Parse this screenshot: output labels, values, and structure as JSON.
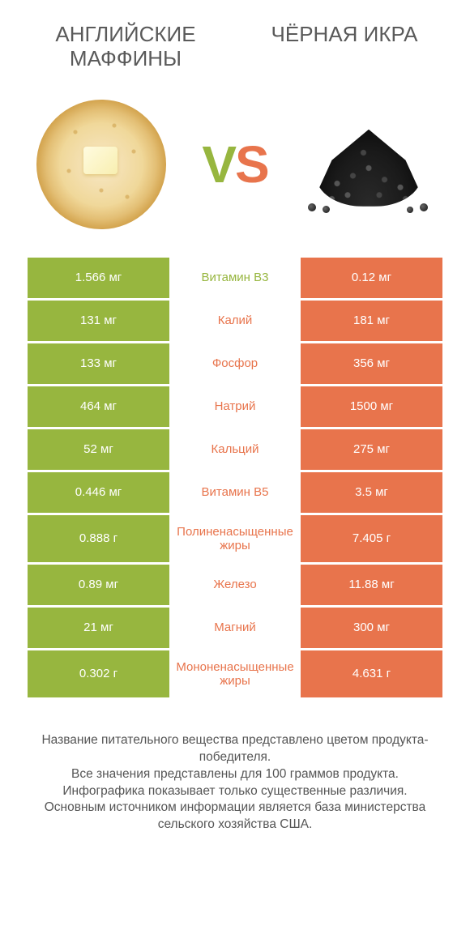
{
  "colors": {
    "left": "#97b63f",
    "right": "#e8744c",
    "text": "#555555"
  },
  "header": {
    "left_title": "АНГЛИЙСКИЕ МАФФИНЫ",
    "right_title": "ЧЁРНАЯ ИКРА",
    "vs_v": "V",
    "vs_s": "S"
  },
  "rows": [
    {
      "label": "Витамин B3",
      "left": "1.566 мг",
      "right": "0.12 мг",
      "winner": "left",
      "tall": false
    },
    {
      "label": "Калий",
      "left": "131 мг",
      "right": "181 мг",
      "winner": "right",
      "tall": false
    },
    {
      "label": "Фосфор",
      "left": "133 мг",
      "right": "356 мг",
      "winner": "right",
      "tall": false
    },
    {
      "label": "Натрий",
      "left": "464 мг",
      "right": "1500 мг",
      "winner": "right",
      "tall": false
    },
    {
      "label": "Кальций",
      "left": "52 мг",
      "right": "275 мг",
      "winner": "right",
      "tall": false
    },
    {
      "label": "Витамин B5",
      "left": "0.446 мг",
      "right": "3.5 мг",
      "winner": "right",
      "tall": false
    },
    {
      "label": "Полиненасыщенные жиры",
      "left": "0.888 г",
      "right": "7.405 г",
      "winner": "right",
      "tall": true
    },
    {
      "label": "Железо",
      "left": "0.89 мг",
      "right": "11.88 мг",
      "winner": "right",
      "tall": false
    },
    {
      "label": "Магний",
      "left": "21 мг",
      "right": "300 мг",
      "winner": "right",
      "tall": false
    },
    {
      "label": "Мононенасыщенные жиры",
      "left": "0.302 г",
      "right": "4.631 г",
      "winner": "right",
      "tall": true
    }
  ],
  "footer": {
    "line1": "Название питательного вещества представлено цветом продукта-победителя.",
    "line2": "Все значения представлены для 100 граммов продукта.",
    "line3": "Инфографика показывает только существенные различия.",
    "line4": "Основным источником информации является база министерства сельского хозяйства США."
  }
}
